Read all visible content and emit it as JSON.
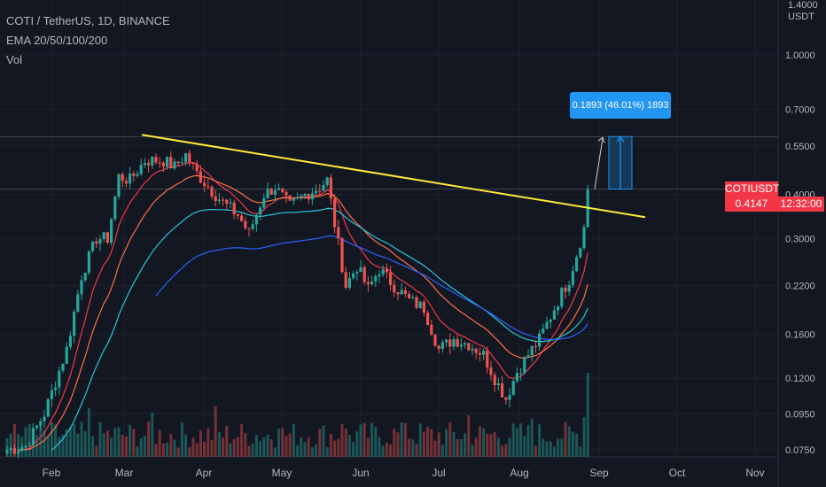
{
  "legend": {
    "symbol": "COTI / TetherUS, 1D, BINANCE",
    "indicator": "EMA 20/50/100/200",
    "volume": "Vol"
  },
  "price_axis": {
    "unit_top": "1.4000",
    "unit": "USDT"
  },
  "current_price": {
    "symbol": "COTIUSDT",
    "price": "0.4147",
    "countdown": "12:32:00"
  },
  "measurement": {
    "text": "0.1893 (46.01%) 1893"
  },
  "colors": {
    "background": "#131722",
    "up_candle": "#26a69a",
    "down_candle": "#ef5350",
    "trendline": "#ffeb3b",
    "ema20": "#f23645",
    "ema50": "#ff7043",
    "ema100": "#26c6da",
    "ema200": "#2962ff",
    "price_tag": "#f23645",
    "measure": "#2196f3"
  },
  "chart_data": {
    "type": "candlestick",
    "scale": "log",
    "y_ticks": [
      "1.0000",
      "0.7000",
      "0.5500",
      "0.4000",
      "0.3000",
      "0.2200",
      "0.1600",
      "0.1200",
      "0.0950",
      "0.0750"
    ],
    "x_ticks": [
      "Feb",
      "Mar",
      "Apr",
      "May",
      "Jun",
      "Jul",
      "Aug",
      "Sep",
      "Oct",
      "Nov"
    ],
    "ylim": [
      0.075,
      1.4
    ],
    "trendline": [
      [
        0.585
      ],
      [
        0.345
      ]
    ],
    "price_anchors": [
      [
        0,
        0.075
      ],
      [
        5,
        0.077
      ],
      [
        10,
        0.095
      ],
      [
        16,
        0.145
      ],
      [
        20,
        0.235
      ],
      [
        24,
        0.3
      ],
      [
        27,
        0.3
      ],
      [
        30,
        0.45
      ],
      [
        33,
        0.44
      ],
      [
        37,
        0.5
      ],
      [
        42,
        0.5
      ],
      [
        45,
        0.48
      ],
      [
        48,
        0.52
      ],
      [
        51,
        0.46
      ],
      [
        55,
        0.41
      ],
      [
        58,
        0.38
      ],
      [
        62,
        0.35
      ],
      [
        65,
        0.31
      ],
      [
        69,
        0.4
      ],
      [
        72,
        0.42
      ],
      [
        76,
        0.37
      ],
      [
        80,
        0.4
      ],
      [
        84,
        0.42
      ],
      [
        86,
        0.44
      ],
      [
        88,
        0.33
      ],
      [
        91,
        0.22
      ],
      [
        94,
        0.25
      ],
      [
        97,
        0.215
      ],
      [
        100,
        0.245
      ],
      [
        104,
        0.22
      ],
      [
        108,
        0.2
      ],
      [
        112,
        0.19
      ],
      [
        116,
        0.145
      ],
      [
        120,
        0.155
      ],
      [
        124,
        0.15
      ],
      [
        128,
        0.14
      ],
      [
        131,
        0.12
      ],
      [
        134,
        0.105
      ],
      [
        137,
        0.125
      ],
      [
        140,
        0.14
      ],
      [
        143,
        0.155
      ],
      [
        146,
        0.18
      ],
      [
        149,
        0.21
      ],
      [
        151,
        0.23
      ],
      [
        153,
        0.27
      ],
      [
        155,
        0.32
      ],
      [
        156,
        0.49
      ]
    ]
  }
}
